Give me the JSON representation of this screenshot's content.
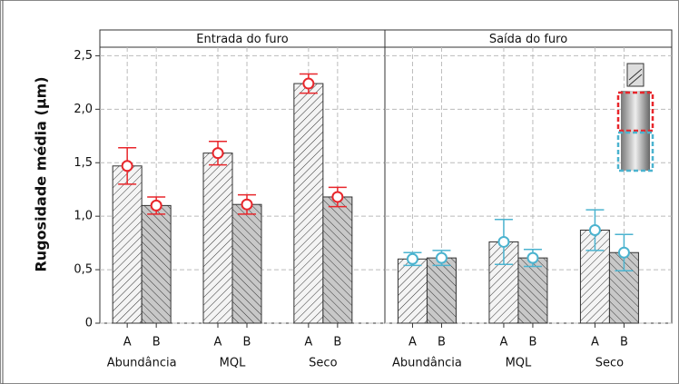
{
  "chart_data": [
    {
      "type": "bar",
      "title": "Entrada do furo",
      "ylabel": "Rugosidade média (µm)",
      "groups": [
        "Abundância",
        "MQL",
        "Seco"
      ],
      "categories": [
        "A",
        "B",
        "A",
        "B",
        "A",
        "B"
      ],
      "values": [
        1.47,
        1.1,
        1.59,
        1.11,
        2.24,
        1.18
      ],
      "errors": [
        0.17,
        0.08,
        0.11,
        0.09,
        0.09,
        0.09
      ],
      "marker_color": "#e8262b",
      "ylim": [
        0,
        2.58
      ],
      "yticks": [
        0,
        {
          "value": 0.5,
          "label": "0,5"
        },
        {
          "value": 1.0,
          "label": "1,0"
        },
        {
          "value": 1.5,
          "label": "1,5"
        },
        {
          "value": 2.0,
          "label": "2,0"
        },
        {
          "value": 2.5,
          "label": "2,5"
        }
      ],
      "grid": true
    },
    {
      "type": "bar",
      "title": "Saída do furo",
      "groups": [
        "Abundância",
        "MQL",
        "Seco"
      ],
      "categories": [
        "A",
        "B",
        "A",
        "B",
        "A",
        "B"
      ],
      "values": [
        0.6,
        0.61,
        0.76,
        0.61,
        0.87,
        0.66
      ],
      "errors": [
        0.06,
        0.07,
        0.21,
        0.08,
        0.19,
        0.17
      ],
      "marker_color": "#4bb3cf",
      "ylim": [
        0,
        2.58
      ],
      "yticks": [
        0,
        0.5,
        1.0,
        1.5,
        2.0,
        2.5
      ],
      "grid": true
    }
  ]
}
